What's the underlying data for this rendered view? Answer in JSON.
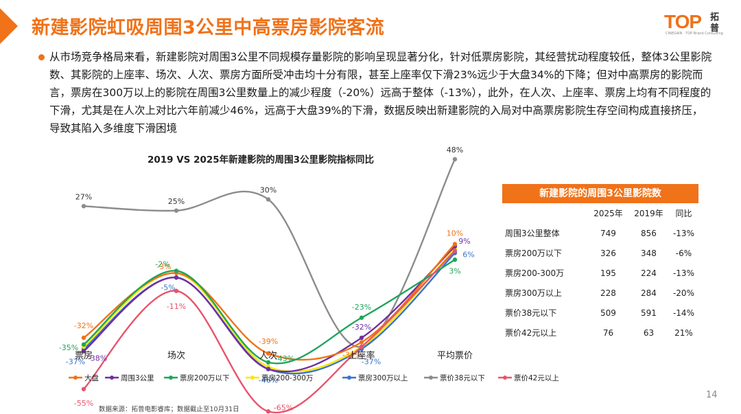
{
  "header": {
    "title": "新建影院虹吸周围3公里中高票房影院客流",
    "logo_text": "TOP",
    "logo_sub": "CINEGAIN · TOP Brand Consulting",
    "logo_cn": "拓普"
  },
  "summary": "从市场竞争格局来看，新建影院对周围3公里不同规模存量影院的影响呈现显著分化，针对低票房影院，其经营扰动程度较低，整体3公里影院数、其影院的上座率、场次、人次、票房方面所受冲击均十分有限，甚至上座率仅下滑23%远少于大盘34%的下降；但对中高票房的影院而言，票房在300万以上的影院在周围3公里数量上的减少程度（-20%）远高于整体（-13%），此外，在人次、上座率、票房上均有不同程度的下滑，尤其是在人次上对比六年前减少46%，远高于大盘39%的下滑，数据反映出新建影院的入局对中高票房影院生存空间构成直接挤压，导致其陷入多维度下滑困境",
  "chart_data": {
    "type": "line",
    "title": "2019 VS 2025年新建影院的周围3公里影院指标同比",
    "categories": [
      "票房",
      "场次",
      "人次",
      "上座率",
      "平均票价"
    ],
    "series": [
      {
        "name": "大盘",
        "color": "#f07219",
        "values": [
          -32,
          -3,
          -39,
          -34,
          10
        ],
        "labels": [
          "-32%",
          "-3%",
          "-39%",
          "-34%",
          "10%"
        ]
      },
      {
        "name": "周围3公里",
        "color": "#7030a0",
        "values": [
          -38,
          -5,
          -46,
          -32,
          9
        ],
        "labels": [
          "-38%",
          "",
          "",
          "-32%",
          "9%"
        ]
      },
      {
        "name": "票房200万以下",
        "color": "#1ea55a",
        "values": [
          -35,
          -2,
          -43,
          -23,
          3
        ],
        "labels": [
          "-35%",
          "-2%",
          "-43%",
          "-23%",
          "3%"
        ]
      },
      {
        "name": "票房200-300万",
        "color": "#ffe600",
        "values": [
          -36,
          -3,
          -45,
          -36,
          8
        ],
        "labels": [
          "",
          "",
          "",
          "",
          ""
        ]
      },
      {
        "name": "票房300万以上",
        "color": "#3a74c9",
        "values": [
          -37,
          -5,
          -46,
          -37,
          6
        ],
        "labels": [
          "-37%",
          "-5%",
          "-46%",
          "-37%",
          "6%"
        ]
      },
      {
        "name": "票价38元以下",
        "color": "#8c8c8c",
        "values": [
          27,
          25,
          30,
          -36,
          48
        ],
        "labels": [
          "27%",
          "25%",
          "30%",
          "",
          "48%"
        ]
      },
      {
        "name": "票价42元以上",
        "color": "#e8546b",
        "values": [
          -55,
          -11,
          -65,
          -36,
          7
        ],
        "labels": [
          "-55%",
          "-11%",
          "-65%",
          "",
          ""
        ]
      }
    ],
    "grid": false,
    "legend_position": "bottom"
  },
  "table": {
    "title": "新建影院的周围3公里影院数",
    "headers": [
      "",
      "2025年",
      "2019年",
      "同比"
    ],
    "rows": [
      [
        "周围3公里整体",
        "749",
        "856",
        "-13%"
      ],
      [
        "票房200万以下",
        "326",
        "348",
        "-6%"
      ],
      [
        "票房200-300万",
        "195",
        "224",
        "-13%"
      ],
      [
        "票房300万以上",
        "228",
        "284",
        "-20%"
      ],
      [
        "票价38元以下",
        "509",
        "591",
        "-14%"
      ],
      [
        "票价42元以上",
        "76",
        "63",
        "21%"
      ]
    ]
  },
  "footer": {
    "source": "数据来源：拓普电影睿库；数据截止至10月31日",
    "page_number": "14"
  }
}
